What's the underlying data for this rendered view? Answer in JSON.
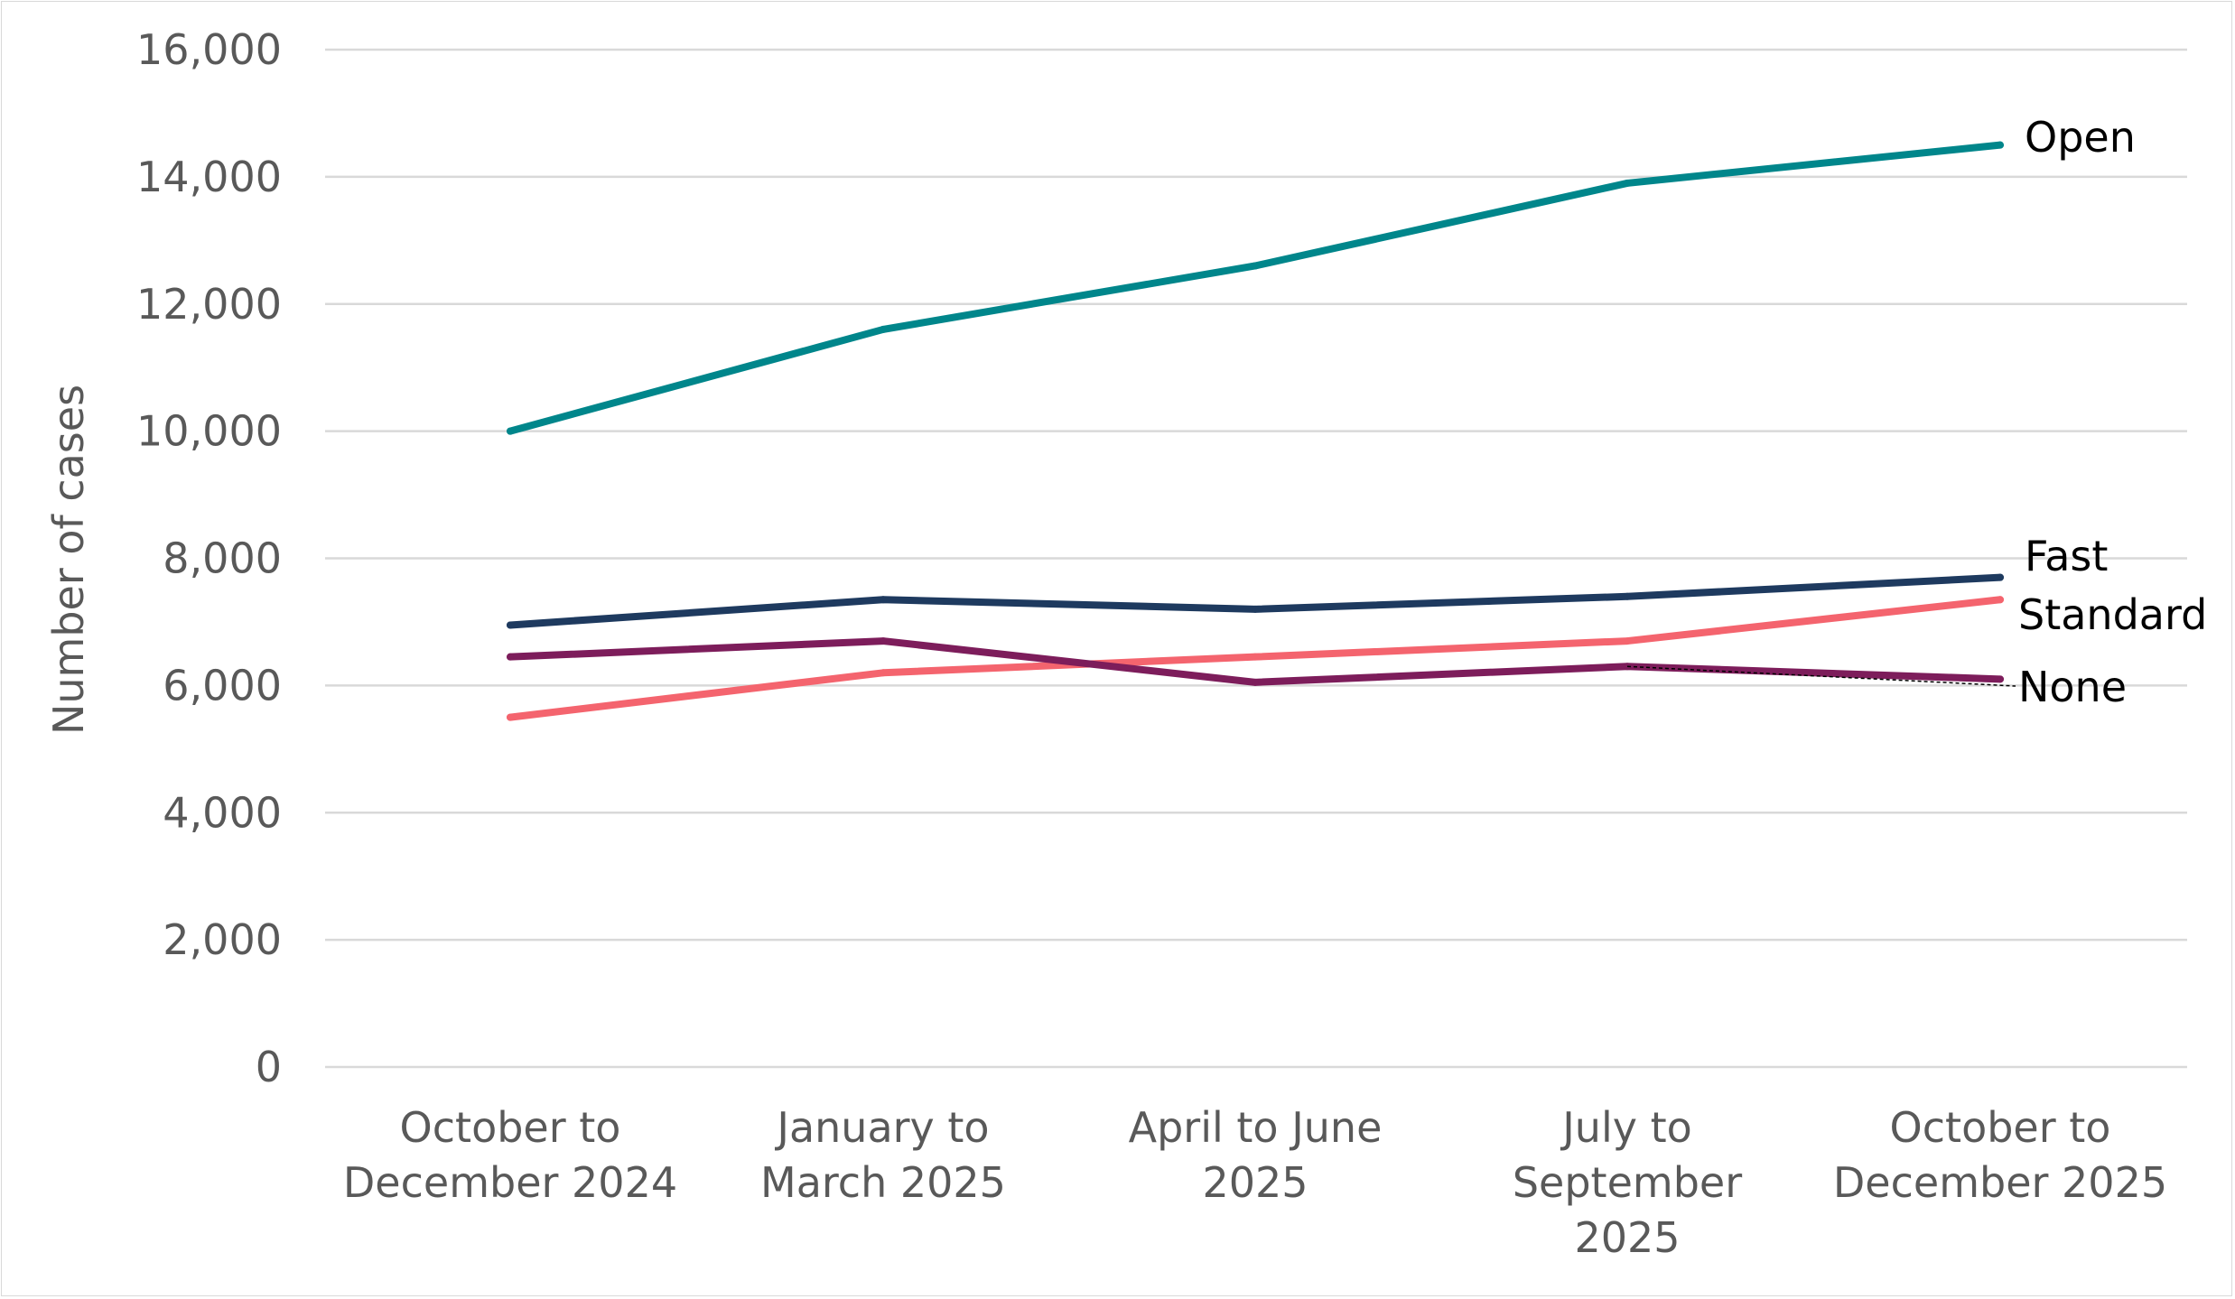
{
  "chart_data": {
    "type": "line",
    "title": "",
    "ylabel": "Number of cases",
    "xlabel": "",
    "ylim": [
      0,
      16000
    ],
    "yticks": [
      0,
      2000,
      4000,
      6000,
      8000,
      10000,
      12000,
      14000,
      16000
    ],
    "ytick_labels": [
      "0",
      "2,000",
      "4,000",
      "6,000",
      "8,000",
      "10,000",
      "12,000",
      "14,000",
      "16,000"
    ],
    "grid": true,
    "legend": "inline labels at line ends",
    "categories": [
      [
        "October to",
        "December 2024"
      ],
      [
        "January to",
        "March 2025"
      ],
      [
        "April to June",
        "2025"
      ],
      [
        "July to",
        "September",
        "2025"
      ],
      [
        "October to",
        "December 2025"
      ]
    ],
    "series": [
      {
        "name": "Open",
        "color": "#00868b",
        "values": [
          10000,
          11600,
          12600,
          13900,
          14500
        ]
      },
      {
        "name": "Fast",
        "color": "#1e3a5f",
        "values": [
          6950,
          7350,
          7200,
          7400,
          7700
        ]
      },
      {
        "name": "Standard",
        "color": "#f4646e",
        "values": [
          5500,
          6200,
          6450,
          6700,
          7350
        ]
      },
      {
        "name": "None",
        "color": "#7d1d5b",
        "values": [
          6450,
          6700,
          6050,
          6300,
          6100
        ]
      }
    ]
  }
}
